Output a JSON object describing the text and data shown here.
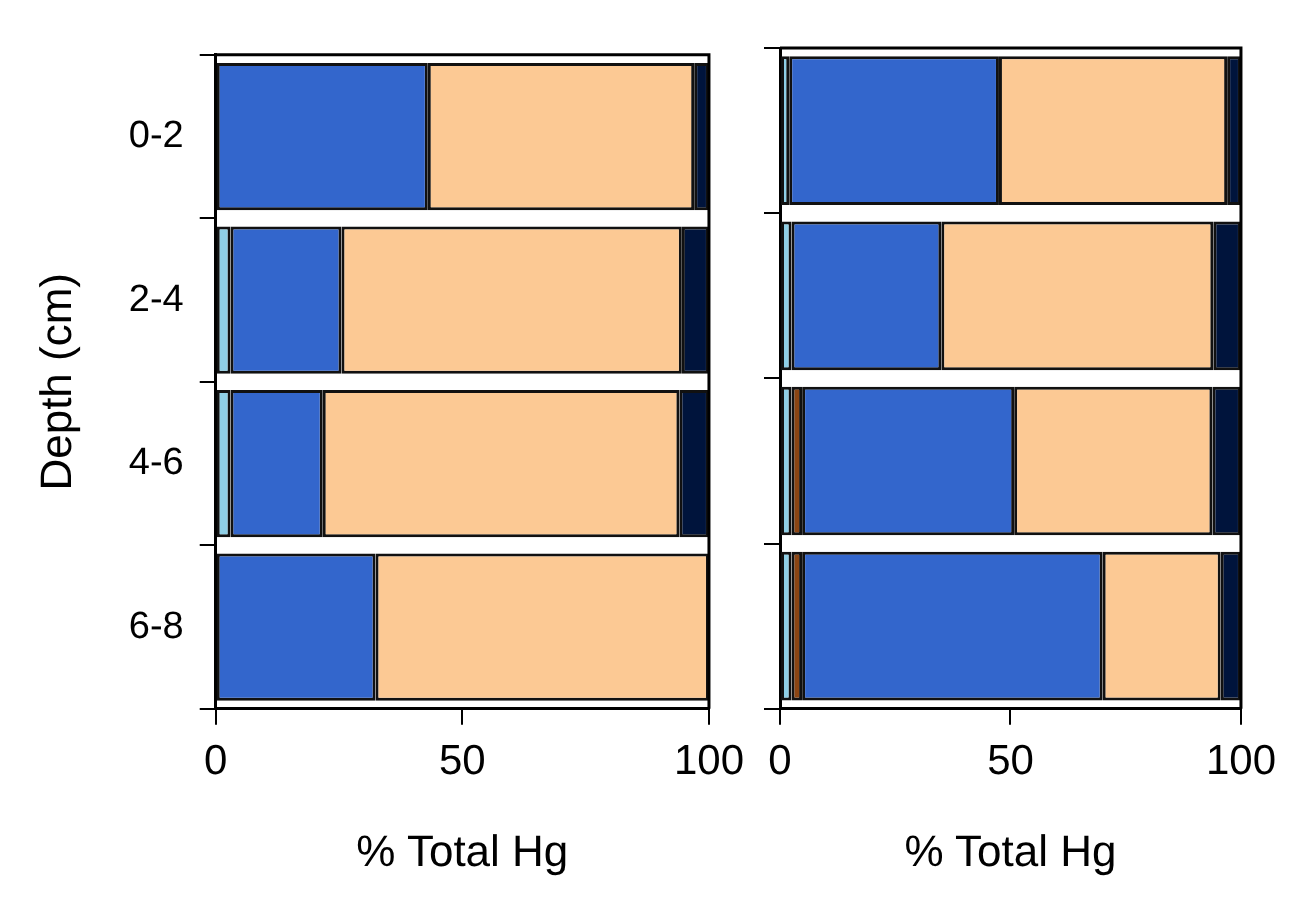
{
  "chart_data": [
    {
      "type": "bar",
      "orientation": "horizontal",
      "stacked": true,
      "categories": [
        "0-2",
        "2-4",
        "4-6",
        "6-8"
      ],
      "series": [
        {
          "color": "#8ecfe6",
          "values": [
            0,
            3,
            3,
            0
          ]
        },
        {
          "color": "#3366cc",
          "values": [
            43,
            22.5,
            18.7,
            32.4
          ]
        },
        {
          "color": "#fcc994",
          "values": [
            54,
            69,
            72.3,
            67.6
          ]
        },
        {
          "color": "#00143c",
          "values": [
            3,
            5.5,
            6,
            0
          ]
        }
      ],
      "xlim": [
        0,
        100
      ],
      "xticks": [
        0,
        50,
        100
      ],
      "xlabel": "% Total Hg",
      "ylabel": "Depth (cm)",
      "grid": false
    },
    {
      "type": "bar",
      "orientation": "horizontal",
      "stacked": true,
      "categories": [
        null,
        null,
        null,
        null
      ],
      "series": [
        {
          "color": "#8ecfe6",
          "values": [
            2,
            2.5,
            2.5,
            2.5
          ]
        },
        {
          "color": "#8b4513",
          "values": [
            0,
            0,
            2.3,
            2.3
          ]
        },
        {
          "color": "#3366cc",
          "values": [
            45.5,
            32.5,
            46,
            65.2
          ]
        },
        {
          "color": "#fcc994",
          "values": [
            49.5,
            59,
            43,
            25.6
          ]
        },
        {
          "color": "#00143c",
          "values": [
            3,
            6,
            6.2,
            4.4
          ]
        }
      ],
      "xlim": [
        0,
        100
      ],
      "xticks": [
        0,
        50,
        100
      ],
      "xlabel": "% Total Hg",
      "tick_labels": "x",
      "grid": false
    }
  ]
}
